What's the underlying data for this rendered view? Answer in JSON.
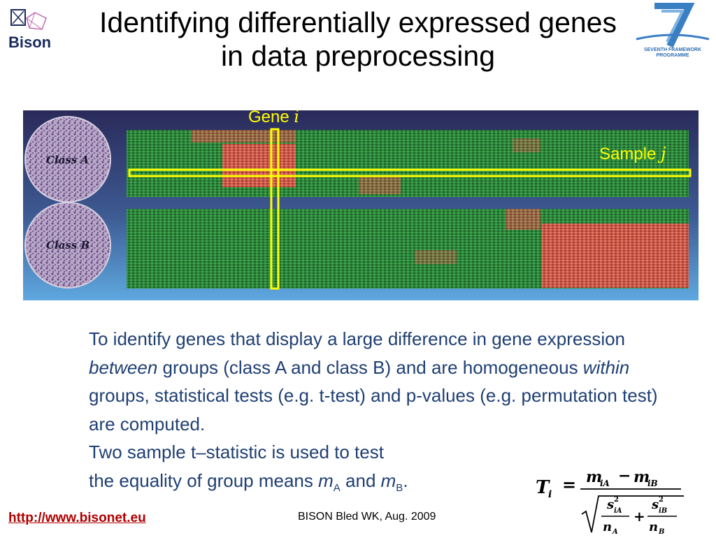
{
  "logos": {
    "bison_word": "Bison",
    "fp7_line1": "SEVENTH FRAMEWORK",
    "fp7_line2": "PROGRAMME"
  },
  "title": {
    "line1": "Identifying differentially expressed genes",
    "line2": "in data preprocessing"
  },
  "figure": {
    "class_a_label": "Class A",
    "class_b_label": "Class B",
    "gene_label": "Gene",
    "gene_var": "i",
    "sample_label": "Sample",
    "sample_var": "j",
    "highlight_color": "#ffff00",
    "heat_red": "#e0524a",
    "heat_green": "#2f8a3e"
  },
  "body": {
    "p1_a": "To identify genes that display a large difference in gene expression ",
    "p1_em1": "between",
    "p1_b": " groups (class A and class B) and are homogeneous ",
    "p1_em2": "within",
    "p1_c": " groups, statistical tests (e.g. t-test) and p-values (e.g. permutation test) are computed.",
    "p2_a": "Two sample t–statistic is used to test",
    "p2_b": "the equality of group means ",
    "p2_ma": "m",
    "p2_ma_sub": "A",
    "p2_and": " and ",
    "p2_mb": "m",
    "p2_mb_sub": "B",
    "p2_end": "."
  },
  "formula": {
    "lhs": "T",
    "lhs_sub": "i",
    "equals": "=",
    "num_a": "m",
    "num_a_sub": "iA",
    "minus": "−",
    "num_b": "m",
    "num_b_sub": "iB",
    "s": "s",
    "sup": "2",
    "s_a_sub": "iA",
    "s_b_sub": "iB",
    "n": "n",
    "n_a_sub": "A",
    "n_b_sub": "B",
    "plus": "+"
  },
  "footer": {
    "link": "http://www.bisonet.eu",
    "center": "BISON Bled WK, Aug. 2009"
  }
}
